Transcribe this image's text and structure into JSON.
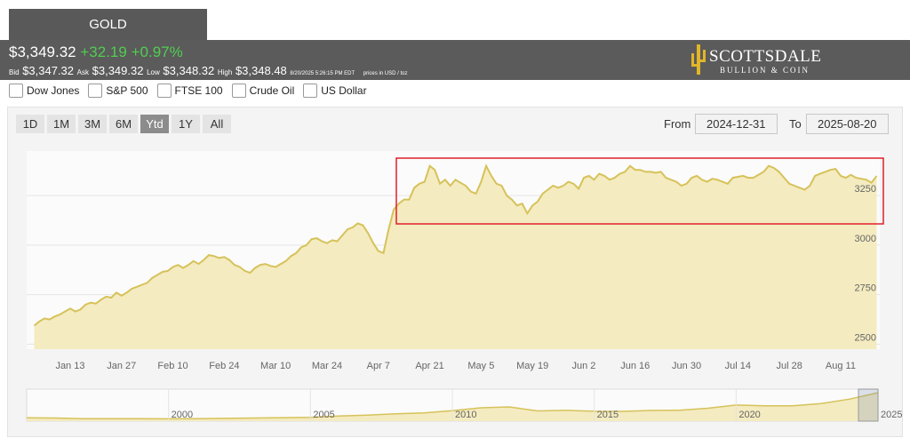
{
  "header": {
    "title": "GOLD",
    "price": "$3,349.32",
    "change": "+32.19",
    "change_pct": "+0.97%",
    "bid_label": "Bid",
    "bid": "$3,347.32",
    "ask_label": "Ask",
    "ask": "$3,349.32",
    "low_label": "Low",
    "low": "$3,348.32",
    "high_label": "High",
    "high": "$3,348.48",
    "timestamp": "8/20/2025 5:26:15 PM EDT",
    "units": "prices in USD / toz",
    "logo_name": "Scottsdale",
    "logo_sub": "Bullion & Coin"
  },
  "compare": [
    "Dow Jones",
    "S&P 500",
    "FTSE 100",
    "Crude Oil",
    "US Dollar"
  ],
  "ranges": {
    "buttons": [
      "1D",
      "1M",
      "3M",
      "6M",
      "Ytd",
      "1Y",
      "All"
    ],
    "active": "Ytd"
  },
  "date_range": {
    "from_label": "From",
    "from": "2024-12-31",
    "to_label": "To",
    "to": "2025-08-20"
  },
  "chart_data": {
    "type": "area",
    "color": "#d6c25a",
    "fill": "#f4ebc0",
    "grid": true,
    "categories": [
      null,
      null,
      null,
      null,
      null,
      null,
      null,
      "Jan 13",
      null,
      null,
      null,
      null,
      null,
      null,
      null,
      null,
      null,
      "Jan 27",
      null,
      null,
      null,
      null,
      null,
      null,
      null,
      null,
      null,
      "Feb 10",
      null,
      null,
      null,
      null,
      null,
      null,
      null,
      null,
      null,
      "Feb 24",
      null,
      null,
      null,
      null,
      null,
      null,
      null,
      null,
      null,
      "Mar 10",
      null,
      null,
      null,
      null,
      null,
      null,
      null,
      null,
      null,
      "Mar 24",
      null,
      null,
      null,
      null,
      null,
      null,
      null,
      null,
      null,
      "Apr 7",
      null,
      null,
      null,
      null,
      null,
      null,
      null,
      null,
      null,
      "Apr 21",
      null,
      null,
      null,
      null,
      null,
      null,
      null,
      null,
      null,
      "May 5",
      null,
      null,
      null,
      null,
      null,
      null,
      null,
      null,
      null,
      "May 19",
      null,
      null,
      null,
      null,
      null,
      null,
      null,
      null,
      null,
      "Jun 2",
      null,
      null,
      null,
      null,
      null,
      null,
      null,
      null,
      null,
      "Jun 16",
      null,
      null,
      null,
      null,
      null,
      null,
      null,
      null,
      null,
      "Jun 30",
      null,
      null,
      null,
      null,
      null,
      null,
      null,
      null,
      null,
      "Jul 14",
      null,
      null,
      null,
      null,
      null,
      null,
      null,
      null,
      null,
      "Jul 28",
      null,
      null,
      null,
      null,
      null,
      null,
      null,
      null,
      null,
      "Aug 11",
      null,
      null,
      null,
      null,
      null,
      null,
      null
    ],
    "values": [
      2594,
      2615,
      2630,
      2625,
      2640,
      2650,
      2665,
      2680,
      2665,
      2675,
      2700,
      2710,
      2705,
      2725,
      2740,
      2735,
      2760,
      2745,
      2760,
      2780,
      2790,
      2800,
      2810,
      2835,
      2850,
      2865,
      2870,
      2890,
      2900,
      2885,
      2900,
      2920,
      2905,
      2925,
      2950,
      2945,
      2935,
      2940,
      2925,
      2900,
      2890,
      2870,
      2860,
      2885,
      2900,
      2905,
      2895,
      2890,
      2905,
      2920,
      2945,
      2960,
      2990,
      3000,
      3030,
      3035,
      3020,
      3010,
      3025,
      3020,
      3050,
      3080,
      3090,
      3110,
      3100,
      3060,
      3010,
      2970,
      2960,
      3080,
      3180,
      3210,
      3230,
      3230,
      3290,
      3310,
      3320,
      3400,
      3380,
      3310,
      3330,
      3300,
      3330,
      3315,
      3300,
      3270,
      3260,
      3320,
      3400,
      3350,
      3310,
      3300,
      3250,
      3230,
      3200,
      3210,
      3160,
      3200,
      3220,
      3260,
      3280,
      3300,
      3290,
      3300,
      3320,
      3310,
      3285,
      3340,
      3350,
      3330,
      3360,
      3350,
      3330,
      3340,
      3360,
      3370,
      3400,
      3380,
      3380,
      3370,
      3370,
      3365,
      3370,
      3340,
      3330,
      3320,
      3300,
      3310,
      3340,
      3350,
      3330,
      3320,
      3335,
      3330,
      3320,
      3310,
      3340,
      3345,
      3350,
      3340,
      3340,
      3355,
      3370,
      3400,
      3390,
      3370,
      3340,
      3310,
      3300,
      3290,
      3280,
      3300,
      3350,
      3360,
      3370,
      3380,
      3385,
      3350,
      3340,
      3355,
      3340,
      3335,
      3330,
      3315,
      3349
    ],
    "ylim": [
      2475,
      3475
    ],
    "yticks": [
      2500,
      2750,
      3000,
      3250
    ]
  },
  "navigator": {
    "x": [
      1995,
      1996,
      1997,
      1998,
      1999,
      2000,
      2001,
      2002,
      2003,
      2004,
      2005,
      2006,
      2007,
      2008,
      2009,
      2010,
      2011,
      2012,
      2013,
      2014,
      2015,
      2016,
      2017,
      2018,
      2019,
      2020,
      2021,
      2022,
      2023,
      2024,
      2025
    ],
    "values": [
      385,
      370,
      290,
      290,
      280,
      270,
      280,
      320,
      365,
      410,
      445,
      600,
      700,
      870,
      975,
      1225,
      1570,
      1670,
      1200,
      1270,
      1160,
      1150,
      1260,
      1280,
      1520,
      1890,
      1800,
      1800,
      2060,
      2600,
      3350
    ],
    "xticks": [
      2000,
      2005,
      2010,
      2015,
      2020,
      2025
    ]
  }
}
